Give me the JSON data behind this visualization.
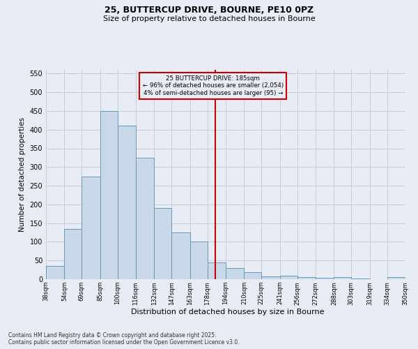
{
  "title_line1": "25, BUTTERCUP DRIVE, BOURNE, PE10 0PZ",
  "title_line2": "Size of property relative to detached houses in Bourne",
  "xlabel": "Distribution of detached houses by size in Bourne",
  "ylabel": "Number of detached properties",
  "footer_line1": "Contains HM Land Registry data © Crown copyright and database right 2025.",
  "footer_line2": "Contains public sector information licensed under the Open Government Licence v3.0.",
  "bin_labels": [
    "38sqm",
    "54sqm",
    "69sqm",
    "85sqm",
    "100sqm",
    "116sqm",
    "132sqm",
    "147sqm",
    "163sqm",
    "178sqm",
    "194sqm",
    "210sqm",
    "225sqm",
    "241sqm",
    "256sqm",
    "272sqm",
    "288sqm",
    "303sqm",
    "319sqm",
    "334sqm",
    "350sqm"
  ],
  "bar_values": [
    35,
    135,
    275,
    450,
    410,
    325,
    190,
    125,
    100,
    45,
    30,
    18,
    7,
    10,
    5,
    4,
    5,
    2,
    0,
    6
  ],
  "bin_edges": [
    38,
    54,
    69,
    85,
    100,
    116,
    132,
    147,
    163,
    178,
    194,
    210,
    225,
    241,
    256,
    272,
    288,
    303,
    319,
    334,
    350
  ],
  "bar_color": "#c9d9ea",
  "bar_edge_color": "#6699bb",
  "grid_color": "#c8ccd8",
  "background_color": "#e8edf5",
  "vline_x": 185,
  "vline_color": "#cc0000",
  "annotation_text": "25 BUTTERCUP DRIVE: 185sqm\n← 96% of detached houses are smaller (2,054)\n4% of semi-detached houses are larger (95) →",
  "annotation_box_facecolor": "#e8edf5",
  "annotation_box_edgecolor": "#cc0000",
  "ylim": [
    0,
    560
  ],
  "yticks": [
    0,
    50,
    100,
    150,
    200,
    250,
    300,
    350,
    400,
    450,
    500,
    550
  ],
  "title_fontsize": 9,
  "subtitle_fontsize": 8,
  "ylabel_fontsize": 7.5,
  "xlabel_fontsize": 8,
  "ytick_fontsize": 7,
  "xtick_fontsize": 6,
  "footer_fontsize": 5.5
}
